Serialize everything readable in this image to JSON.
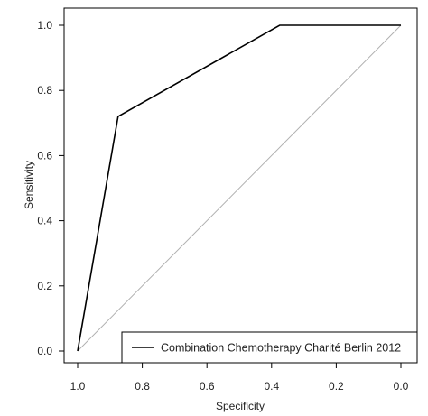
{
  "chart_data": {
    "type": "line",
    "title": "",
    "xlabel": "Specificity",
    "ylabel": "Sensitivity",
    "xlim": [
      1.0,
      0.0
    ],
    "ylim": [
      0.0,
      1.0
    ],
    "x_reversed": true,
    "x_ticks": [
      "1.0",
      "0.8",
      "0.6",
      "0.4",
      "0.2",
      "0.0"
    ],
    "y_ticks": [
      "0.0",
      "0.2",
      "0.4",
      "0.6",
      "0.8",
      "1.0"
    ],
    "grid": false,
    "legend_position": "bottom-right",
    "series": [
      {
        "name": "Combination Chemotherapy Charité Berlin 2012",
        "color": "#000000",
        "x": [
          1.0,
          0.875,
          0.375,
          0.0
        ],
        "y": [
          0.0,
          0.72,
          1.0,
          1.0
        ]
      }
    ],
    "reference_line": {
      "color": "#b0b0b0",
      "x": [
        1.0,
        0.0
      ],
      "y": [
        0.0,
        1.0
      ]
    }
  }
}
